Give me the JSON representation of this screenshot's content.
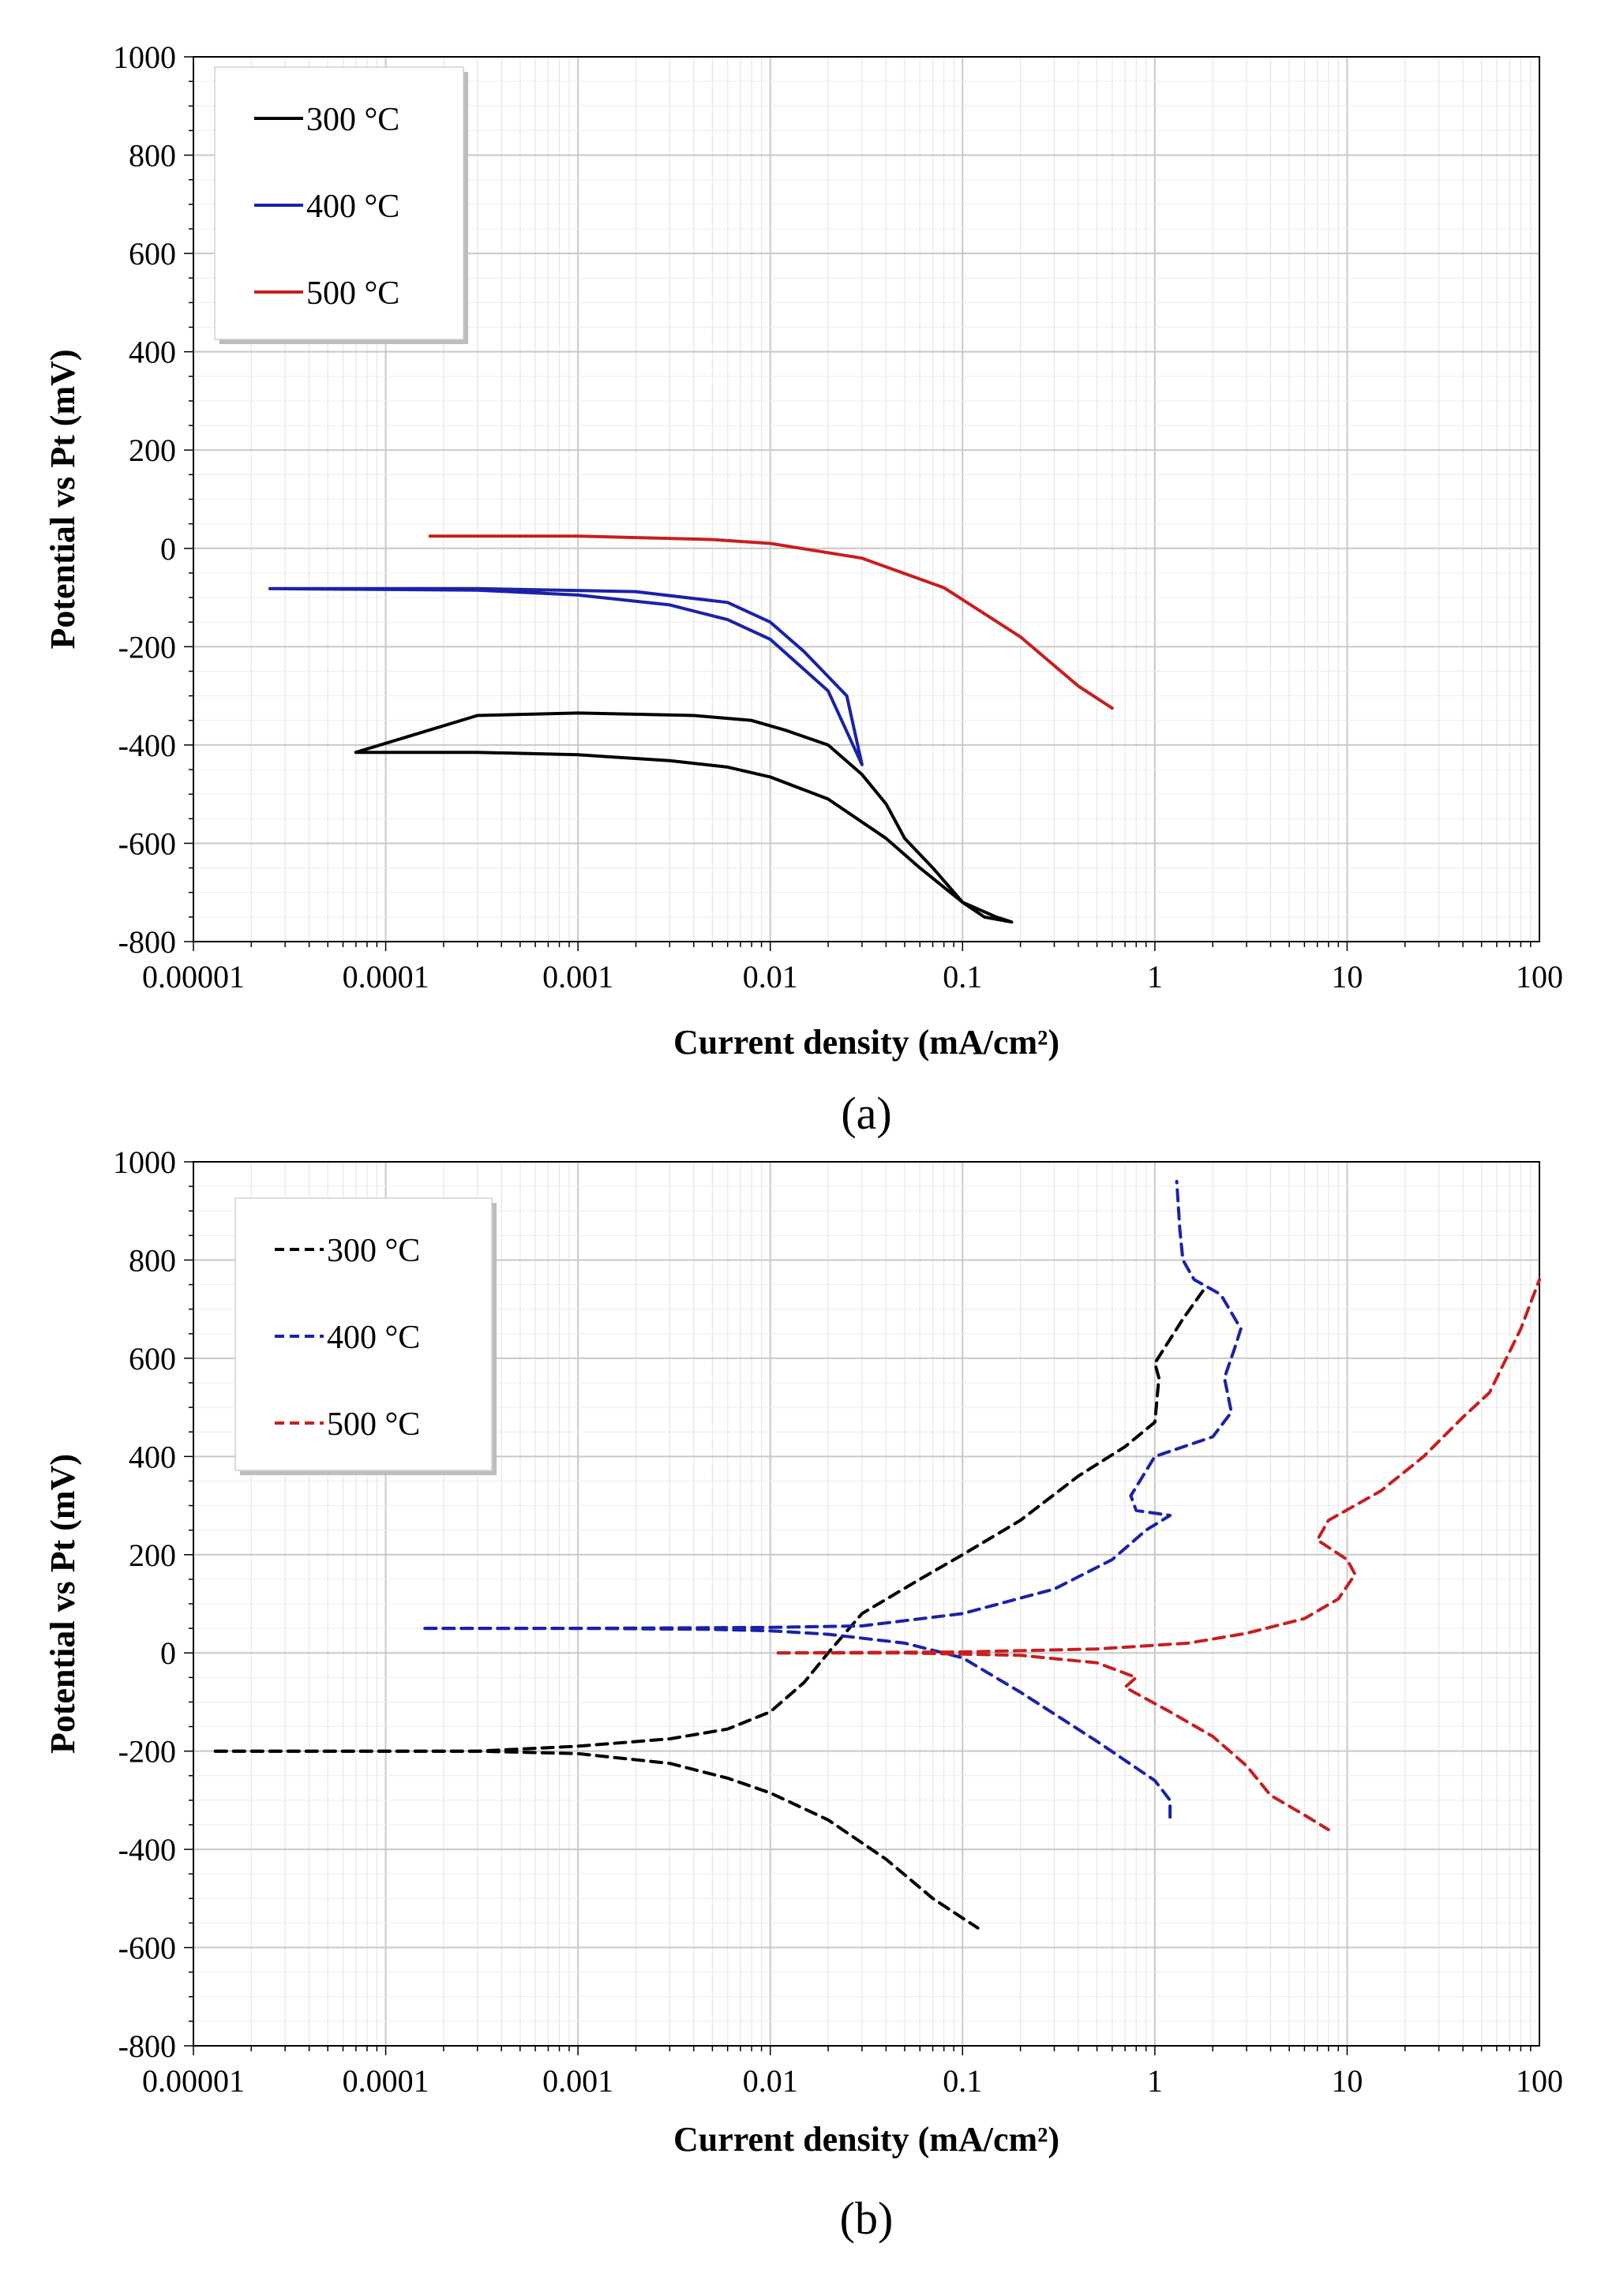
{
  "chart_data": [
    {
      "panel": "(a)",
      "type": "line",
      "line_style": "solid",
      "title": "",
      "xlabel": "Current density (mA/cm²)",
      "ylabel": "Potential vs Pt (mV)",
      "xscale": "log",
      "xlim": [
        1e-05,
        100
      ],
      "ylim": [
        -800,
        1000
      ],
      "xticks": [
        "0.00001",
        "0.0001",
        "0.001",
        "0.01",
        "0.1",
        "1",
        "10",
        "100"
      ],
      "yticks": [
        "-800",
        "-600",
        "-400",
        "-200",
        "0",
        "200",
        "400",
        "600",
        "800",
        "1000"
      ],
      "grid": true,
      "legend_position": "top-left",
      "series": [
        {
          "name": "300 °C",
          "color": "#000000",
          "x": [
            7e-05,
            0.0003,
            0.001,
            0.003,
            0.006,
            0.01,
            0.02,
            0.04,
            0.06,
            0.1,
            0.13,
            0.18,
            0.18,
            0.15,
            0.1,
            0.07,
            0.05,
            0.04,
            0.03,
            0.02,
            0.012,
            0.008,
            0.004,
            0.001,
            0.0003,
            7e-05
          ],
          "y": [
            -415,
            -415,
            -420,
            -432,
            -445,
            -465,
            -510,
            -590,
            -650,
            -720,
            -750,
            -760,
            -760,
            -750,
            -720,
            -650,
            -590,
            -520,
            -460,
            -400,
            -370,
            -350,
            -340,
            -335,
            -340,
            -415
          ]
        },
        {
          "name": "400 °C",
          "color": "#1a22a8",
          "x": [
            2.5e-05,
            0.0003,
            0.001,
            0.003,
            0.006,
            0.01,
            0.02,
            0.03,
            0.03,
            0.025,
            0.015,
            0.01,
            0.006,
            0.002,
            0.0003,
            2.5e-05
          ],
          "y": [
            -82,
            -85,
            -95,
            -115,
            -145,
            -185,
            -290,
            -440,
            -440,
            -300,
            -210,
            -150,
            -110,
            -88,
            -82,
            -82
          ]
        },
        {
          "name": "500 °C",
          "color": "#c81e1e",
          "x": [
            0.00017,
            0.001,
            0.005,
            0.01,
            0.03,
            0.08,
            0.2,
            0.4,
            0.6,
            0.6
          ],
          "y": [
            25,
            25,
            18,
            10,
            -20,
            -80,
            -180,
            -280,
            -325,
            -325
          ]
        }
      ],
      "legend_entries": [
        "300 °C",
        "400 °C",
        "500 °C"
      ],
      "caption": "(a)"
    },
    {
      "panel": "(b)",
      "type": "line",
      "line_style": "dashed",
      "title": "",
      "xlabel": "Current density (mA/cm²)",
      "ylabel": "Potential vs Pt (mV)",
      "xscale": "log",
      "xlim": [
        1e-05,
        100
      ],
      "ylim": [
        -800,
        1000
      ],
      "xticks": [
        "0.00001",
        "0.0001",
        "0.001",
        "0.01",
        "0.1",
        "1",
        "10",
        "100"
      ],
      "yticks": [
        "-800",
        "-600",
        "-400",
        "-200",
        "0",
        "200",
        "400",
        "600",
        "800",
        "1000"
      ],
      "grid": true,
      "legend_position": "top-left",
      "series": [
        {
          "name": "300 °C",
          "color": "#000000",
          "branches": [
            {
              "x": [
                1.3e-05,
                0.0003,
                0.001,
                0.003,
                0.006,
                0.01,
                0.02,
                0.04,
                0.07,
                0.1,
                0.12
              ],
              "y": [
                -200,
                -200,
                -205,
                -225,
                -255,
                -285,
                -340,
                -420,
                -500,
                -540,
                -560
              ]
            },
            {
              "x": [
                1.3e-05,
                0.0003,
                0.001,
                0.003,
                0.006,
                0.01,
                0.015,
                0.02,
                0.03,
                0.06,
                0.1,
                0.2,
                0.4,
                0.7,
                1.0,
                1.05,
                1.0,
                1.4,
                1.8
              ],
              "y": [
                -200,
                -200,
                -190,
                -175,
                -155,
                -120,
                -60,
                0,
                80,
                150,
                200,
                270,
                360,
                420,
                470,
                560,
                590,
                680,
                740
              ]
            }
          ]
        },
        {
          "name": "400 °C",
          "color": "#1a22a8",
          "branches": [
            {
              "x": [
                0.00016,
                0.001,
                0.005,
                0.01,
                0.02,
                0.05,
                0.1,
                0.2,
                0.5,
                1.0,
                1.2,
                1.2
              ],
              "y": [
                50,
                50,
                48,
                45,
                38,
                20,
                -10,
                -80,
                -180,
                -260,
                -300,
                -340
              ]
            },
            {
              "x": [
                0.00016,
                0.001,
                0.01,
                0.03,
                0.1,
                0.3,
                0.6,
                0.9,
                1.2,
                0.8,
                0.75,
                1.0,
                2.0,
                2.5,
                2.3,
                2.6,
                2.8,
                2.2,
                1.6,
                1.4,
                1.35,
                1.3
              ],
              "y": [
                50,
                50,
                52,
                55,
                80,
                130,
                190,
                250,
                280,
                290,
                320,
                400,
                440,
                490,
                560,
                620,
                660,
                730,
                760,
                800,
                860,
                960
              ]
            }
          ]
        },
        {
          "name": "500 °C",
          "color": "#c81e1e",
          "branches": [
            {
              "x": [
                0.011,
                0.05,
                0.2,
                0.5,
                0.8,
                0.7,
                1.2,
                2.0,
                3.0,
                4.0,
                6.0,
                8.0
              ],
              "y": [
                0,
                0,
                -5,
                -20,
                -50,
                -70,
                -120,
                -170,
                -230,
                -290,
                -330,
                -360
              ]
            },
            {
              "x": [
                0.011,
                0.1,
                0.5,
                1.5,
                3,
                6,
                9,
                11,
                10,
                7,
                8,
                15,
                25,
                40,
                55,
                80,
                100
              ],
              "y": [
                0,
                2,
                8,
                20,
                40,
                70,
                110,
                160,
                190,
                230,
                270,
                330,
                400,
                480,
                530,
                660,
                760
              ]
            }
          ]
        }
      ],
      "legend_entries": [
        "300 °C",
        "400 °C",
        "500 °C"
      ],
      "caption": "(b)"
    }
  ]
}
